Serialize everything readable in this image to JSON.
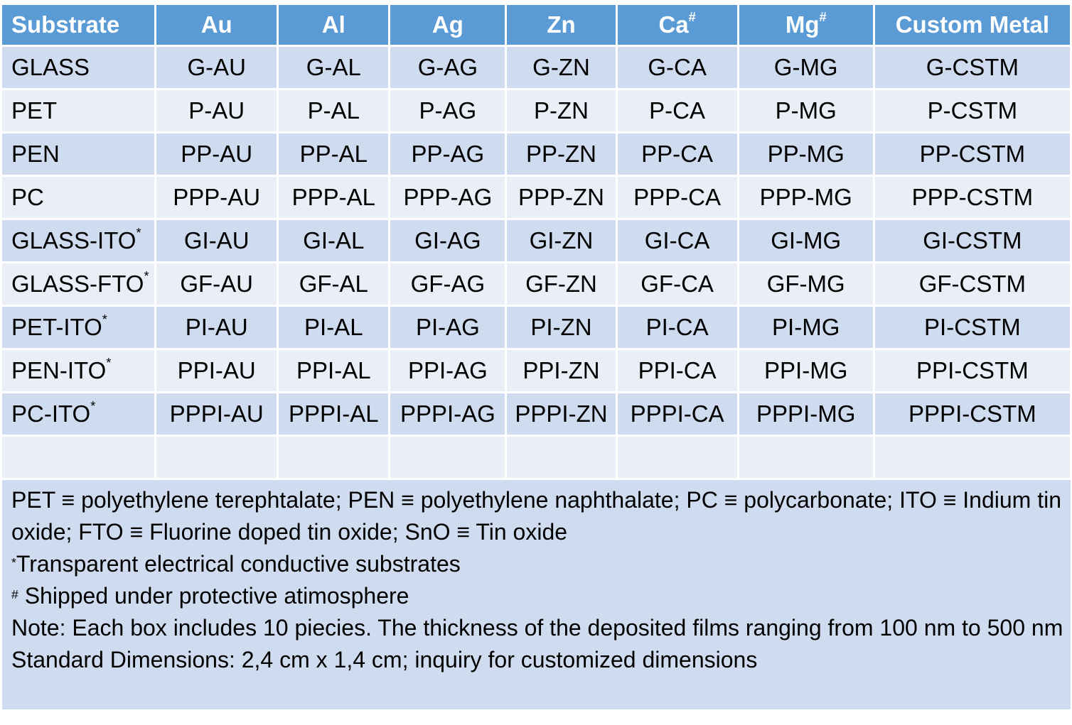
{
  "table": {
    "headers": [
      {
        "text": "Substrate",
        "sup": ""
      },
      {
        "text": "Au",
        "sup": ""
      },
      {
        "text": "Al",
        "sup": ""
      },
      {
        "text": "Ag",
        "sup": ""
      },
      {
        "text": "Zn",
        "sup": ""
      },
      {
        "text": "Ca",
        "sup": "#"
      },
      {
        "text": "Mg",
        "sup": "#"
      },
      {
        "text": "Custom Metal",
        "sup": ""
      }
    ],
    "rows": [
      {
        "substrate": "GLASS",
        "sup": "",
        "cells": [
          "G-AU",
          "G-AL",
          "G-AG",
          "G-ZN",
          "G-CA",
          "G-MG",
          "G-CSTM"
        ]
      },
      {
        "substrate": "PET",
        "sup": "",
        "cells": [
          "P-AU",
          "P-AL",
          "P-AG",
          "P-ZN",
          "P-CA",
          "P-MG",
          "P-CSTM"
        ]
      },
      {
        "substrate": "PEN",
        "sup": "",
        "cells": [
          "PP-AU",
          "PP-AL",
          "PP-AG",
          "PP-ZN",
          "PP-CA",
          "PP-MG",
          "PP-CSTM"
        ]
      },
      {
        "substrate": "PC",
        "sup": "",
        "cells": [
          "PPP-AU",
          "PPP-AL",
          "PPP-AG",
          "PPP-ZN",
          "PPP-CA",
          "PPP-MG",
          "PPP-CSTM"
        ]
      },
      {
        "substrate": "GLASS-ITO",
        "sup": "*",
        "cells": [
          "GI-AU",
          "GI-AL",
          "GI-AG",
          "GI-ZN",
          "GI-CA",
          "GI-MG",
          "GI-CSTM"
        ]
      },
      {
        "substrate": "GLASS-FTO",
        "sup": "*",
        "cells": [
          "GF-AU",
          "GF-AL",
          "GF-AG",
          "GF-ZN",
          "GF-CA",
          "GF-MG",
          "GF-CSTM"
        ]
      },
      {
        "substrate": "PET-ITO",
        "sup": "*",
        "cells": [
          "PI-AU",
          "PI-AL",
          "PI-AG",
          "PI-ZN",
          "PI-CA",
          "PI-MG",
          "PI-CSTM"
        ]
      },
      {
        "substrate": "PEN-ITO",
        "sup": "*",
        "cells": [
          "PPI-AU",
          "PPI-AL",
          "PPI-AG",
          "PPI-ZN",
          "PPI-CA",
          "PPI-MG",
          "PPI-CSTM"
        ]
      },
      {
        "substrate": "PC-ITO",
        "sup": "*",
        "cells": [
          "PPPI-AU",
          "PPPI-AL",
          "PPPI-AG",
          "PPPI-ZN",
          "PPPI-CA",
          "PPPI-MG",
          "PPPI-CSTM"
        ]
      },
      {
        "substrate": "",
        "sup": "",
        "cells": [
          "",
          "",
          "",
          "",
          "",
          "",
          ""
        ]
      }
    ]
  },
  "notes": {
    "abbreviations": "PET ≡ polyethylene terephtalate; PEN ≡ polyethylene naphthalate; PC ≡ polycarbonate; ITO ≡ Indium tin oxide; FTO ≡ Fluorine doped tin oxide; SnO ≡ Tin oxide",
    "transparent_mark": "*",
    "transparent_text": "Transparent electrical conductive substrates",
    "shipped_mark": "#",
    "shipped_text": " Shipped under protective atimosphere",
    "note": "Note: Each box includes 10 piecies. The thickness of the deposited films ranging from 100 nm to 500 nm",
    "dimensions": "Standard Dimensions: 2,4 cm x 1,4 cm; inquiry for customized dimensions"
  },
  "colors": {
    "header": "#5b9bd5",
    "row_dark": "#cfdbee",
    "row_light": "#e9eef7"
  }
}
